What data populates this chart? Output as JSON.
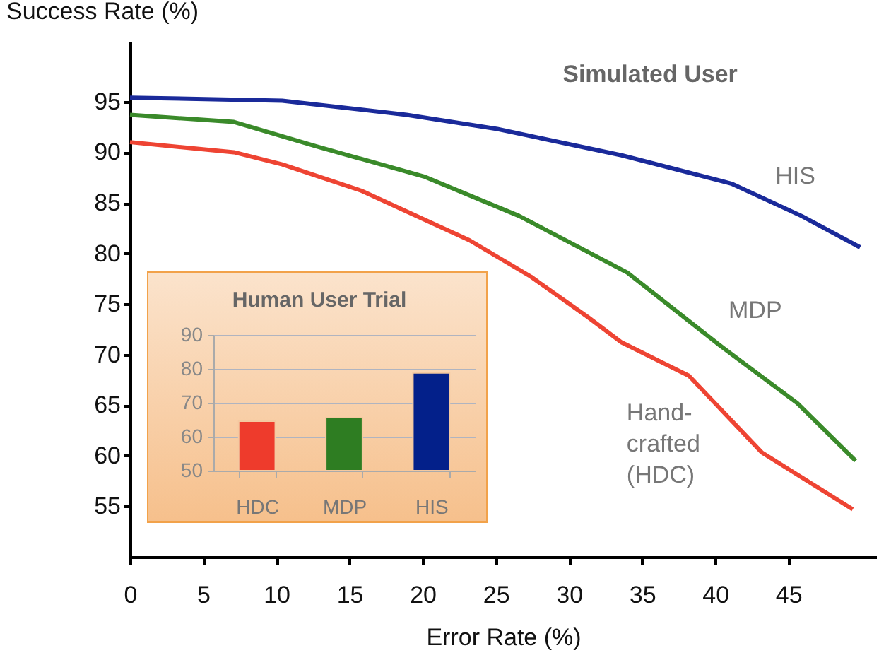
{
  "chart_data": [
    {
      "type": "line",
      "title": "Simulated User",
      "xlabel": "Error Rate (%)",
      "ylabel": "Success Rate (%)",
      "xlim": [
        0,
        51
      ],
      "xticks": [
        0,
        5,
        10,
        15,
        20,
        25,
        30,
        35,
        40,
        45
      ],
      "ylim": [
        50,
        101
      ],
      "yticks": [
        55,
        60,
        65,
        70,
        75,
        80,
        85,
        90,
        95
      ],
      "series": [
        {
          "name": "HIS",
          "color": "#1a2a9a",
          "x": [
            0,
            10.4,
            18.9,
            25.1,
            33.6,
            41.1,
            45.9,
            49.9
          ],
          "values": [
            95.4,
            95.1,
            93.7,
            92.3,
            89.7,
            86.9,
            83.7,
            80.6
          ]
        },
        {
          "name": "MDP",
          "color": "#3a8a2a",
          "x": [
            0,
            7.1,
            12.7,
            20.1,
            26.6,
            34.0,
            40.5,
            45.6,
            49.6
          ],
          "values": [
            93.7,
            93.0,
            90.6,
            87.6,
            83.7,
            78.1,
            70.7,
            65.2,
            59.5
          ]
        },
        {
          "name": "Hand-crafted (HDC)",
          "color": "#ee4433",
          "x": [
            0,
            7.1,
            10.4,
            15.8,
            23.2,
            27.4,
            31.3,
            33.6,
            38.2,
            43.2,
            49.4
          ],
          "values": [
            91.0,
            90.0,
            88.8,
            86.2,
            81.3,
            77.7,
            73.7,
            71.2,
            67.9,
            60.3,
            54.7
          ]
        }
      ]
    },
    {
      "type": "bar",
      "title": "Human User Trial",
      "categories": [
        "HDC",
        "MDP",
        "HIS"
      ],
      "values": [
        64.6,
        65.6,
        78.8
      ],
      "colors": [
        "#ee3b2c",
        "#2e7d22",
        "#03208a"
      ],
      "ylim": [
        50,
        90
      ],
      "yticks": [
        50,
        60,
        70,
        80,
        90
      ],
      "grid": "y"
    }
  ]
}
